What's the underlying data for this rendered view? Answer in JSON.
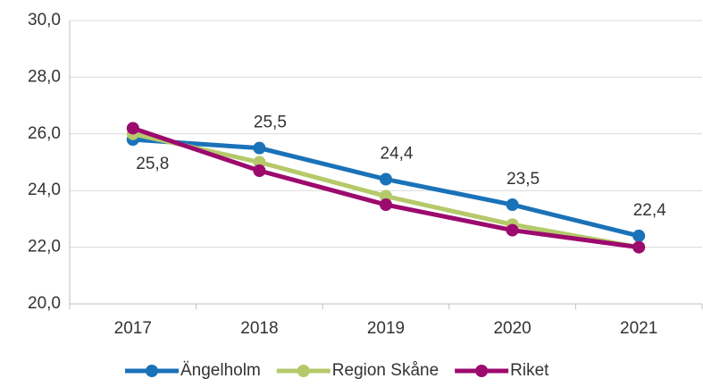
{
  "chart_data": {
    "type": "line",
    "categories": [
      "2017",
      "2018",
      "2019",
      "2020",
      "2021"
    ],
    "series": [
      {
        "name": "Ängelholm",
        "color": "#1a72b8",
        "values": [
          25.8,
          25.5,
          24.4,
          23.5,
          22.4
        ],
        "value_labels": [
          "25,8",
          "25,5",
          "24,4",
          "23,5",
          "22,4"
        ]
      },
      {
        "name": "Region Skåne",
        "color": "#b5c96a",
        "values": [
          26.0,
          25.0,
          23.8,
          22.8,
          22.0
        ]
      },
      {
        "name": "Riket",
        "color": "#9c0a6e",
        "values": [
          26.2,
          24.7,
          23.5,
          22.6,
          22.0
        ]
      }
    ],
    "ylim": [
      20,
      30
    ],
    "yticks": [
      {
        "value": 20,
        "label": "20,0"
      },
      {
        "value": 22,
        "label": "22,0"
      },
      {
        "value": 24,
        "label": "24,0"
      },
      {
        "value": 26,
        "label": "26,0"
      },
      {
        "value": 28,
        "label": "28,0"
      },
      {
        "value": 30,
        "label": "30,0"
      }
    ],
    "grid": true,
    "legend": "bottom"
  }
}
